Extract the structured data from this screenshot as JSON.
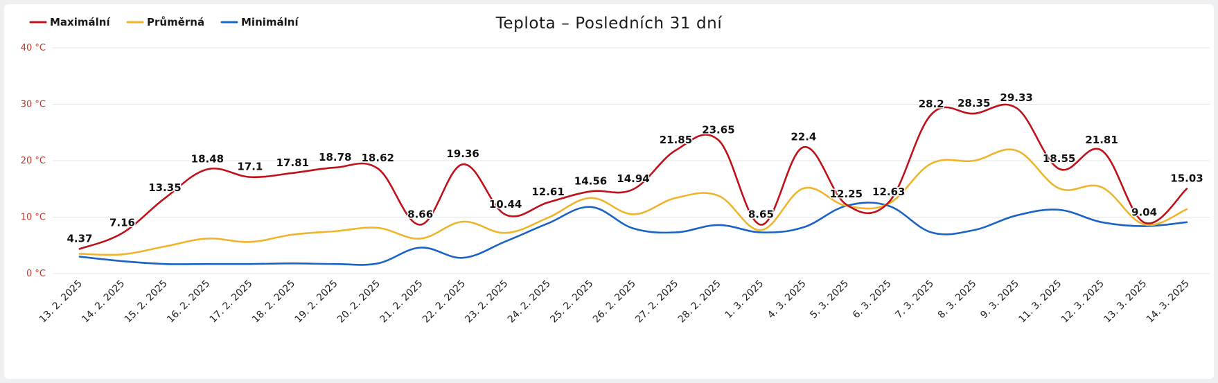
{
  "colors": {
    "max": "#c0111a",
    "avg": "#f0b42b",
    "min": "#1a63c4",
    "grid": "#e4e4e4",
    "ytick": "#c0392b"
  },
  "chart_data": {
    "type": "line",
    "title": "Teplota – Posledních 31 dní",
    "y_unit": "°C",
    "ylim": [
      0,
      40
    ],
    "yticks": [
      "0 °C",
      "10 °C",
      "20 °C",
      "30 °C",
      "40 °C"
    ],
    "grid": true,
    "legend_position": "top-left",
    "categories": [
      "13. 2. 2025",
      "14. 2. 2025",
      "15. 2. 2025",
      "16. 2. 2025",
      "17. 2. 2025",
      "18. 2. 2025",
      "19. 2. 2025",
      "20. 2. 2025",
      "21. 2. 2025",
      "22. 2. 2025",
      "23. 2. 2025",
      "24. 2. 2025",
      "25. 2. 2025",
      "26. 2. 2025",
      "27. 2. 2025",
      "28. 2. 2025",
      "1. 3. 2025",
      "4. 3. 2025",
      "5. 3. 2025",
      "6. 3. 2025",
      "7. 3. 2025",
      "8. 3. 2025",
      "9. 3. 2025",
      "11. 3. 2025",
      "12. 3. 2025",
      "13. 3. 2025",
      "14. 3. 2025"
    ],
    "series": [
      {
        "name": "Maximální",
        "key": "max",
        "labeled": true,
        "values": [
          4.37,
          7.16,
          13.35,
          18.48,
          17.1,
          17.81,
          18.78,
          18.62,
          8.66,
          19.36,
          10.44,
          12.61,
          14.56,
          14.94,
          21.85,
          23.65,
          8.65,
          22.4,
          12.25,
          12.63,
          28.2,
          28.35,
          29.33,
          18.55,
          21.81,
          9.04,
          15.03
        ]
      },
      {
        "name": "Průměrná",
        "key": "avg",
        "labeled": false,
        "values": [
          3.5,
          3.4,
          4.8,
          6.2,
          5.6,
          6.9,
          7.5,
          8.1,
          6.2,
          9.2,
          7.2,
          9.9,
          13.4,
          10.5,
          13.4,
          13.8,
          7.7,
          15.1,
          12.0,
          12.4,
          19.5,
          20.0,
          21.8,
          15.1,
          15.3,
          8.7,
          11.4
        ]
      },
      {
        "name": "Minimální",
        "key": "min",
        "labeled": false,
        "values": [
          3.0,
          2.2,
          1.7,
          1.7,
          1.7,
          1.8,
          1.7,
          1.8,
          4.6,
          2.8,
          5.7,
          8.9,
          11.8,
          8.0,
          7.3,
          8.6,
          7.3,
          8.2,
          12.0,
          12.0,
          7.3,
          7.7,
          10.3,
          11.3,
          9.1,
          8.4,
          9.1
        ]
      }
    ]
  }
}
